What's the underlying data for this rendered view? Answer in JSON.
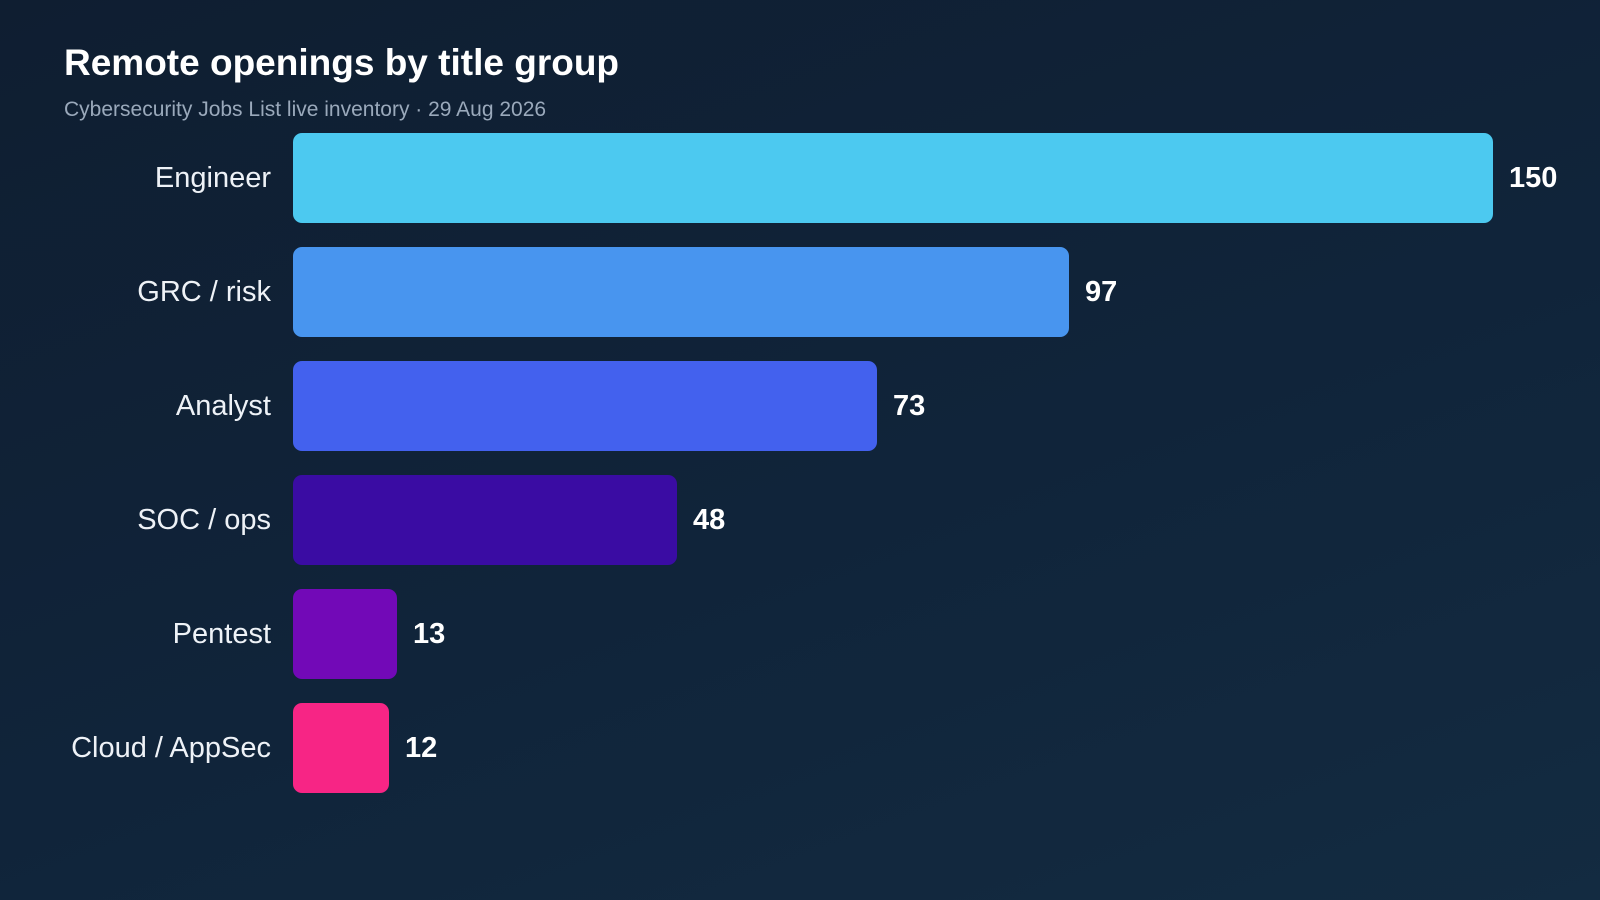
{
  "chart_data": {
    "type": "bar",
    "orientation": "horizontal",
    "title": "Remote openings by title group",
    "subtitle": "Cybersecurity Jobs List live inventory · 29 Aug 2026",
    "categories": [
      "Engineer",
      "GRC / risk",
      "Analyst",
      "SOC / ops",
      "Pentest",
      "Cloud / AppSec"
    ],
    "values": [
      150,
      97,
      73,
      48,
      13,
      12
    ],
    "colors": [
      "#4cc9f0",
      "#4895ef",
      "#4361ee",
      "#3a0ca3",
      "#7209b7",
      "#f72585"
    ],
    "xlim": [
      0,
      150
    ],
    "grid": false,
    "legend": "none",
    "data_labels": true
  }
}
